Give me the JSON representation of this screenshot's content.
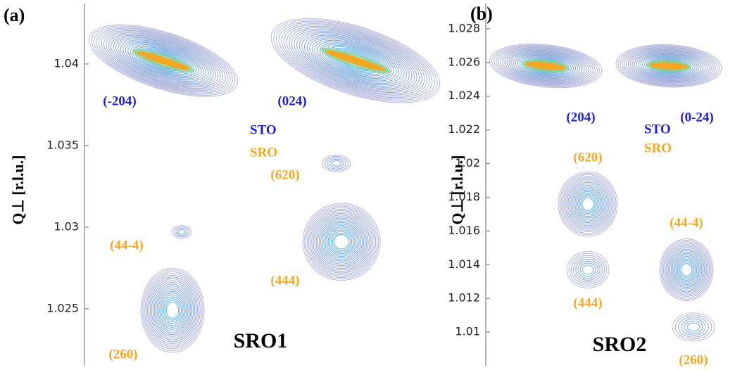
{
  "chart_data": [
    {
      "type": "contour",
      "panel_label": "(a)",
      "ylabel": "Q⊥ [r.l.u.]",
      "title": "SRO1",
      "ylim": [
        1.0215,
        1.0437
      ],
      "yticks": [
        1.025,
        1.03,
        1.035,
        1.04
      ],
      "legend": [
        {
          "name": "STO",
          "color": "#1f1fd0"
        },
        {
          "name": "SRO",
          "color": "#f5a623"
        }
      ],
      "peaks": [
        {
          "label": "(-204)",
          "color": "#1f1fd0",
          "y": 1.0402
        },
        {
          "label": "(024)",
          "color": "#1f1fd0",
          "y": 1.0402
        },
        {
          "label": "(620)",
          "color": "#f5a623",
          "y": 1.0339
        },
        {
          "label": "(44-4)",
          "color": "#f5a623",
          "y": 1.0297
        },
        {
          "label": "(444)",
          "color": "#f5a623",
          "y": 1.0291
        },
        {
          "label": "(260)",
          "color": "#f5a623",
          "y": 1.0249
        }
      ]
    },
    {
      "type": "contour",
      "panel_label": "(b)",
      "ylabel": "Q⊥ [r.l.u.]",
      "title": "SRO2",
      "ylim": [
        1.008,
        1.0295
      ],
      "yticks": [
        1.01,
        1.012,
        1.014,
        1.016,
        1.018,
        1.02,
        1.022,
        1.024,
        1.026,
        1.028
      ],
      "legend": [
        {
          "name": "STO",
          "color": "#1f1fd0"
        },
        {
          "name": "SRO",
          "color": "#f5a623"
        }
      ],
      "peaks": [
        {
          "label": "(204)",
          "color": "#1f1fd0",
          "y": 1.0258
        },
        {
          "label": "(0-24)",
          "color": "#1f1fd0",
          "y": 1.0258
        },
        {
          "label": "(620)",
          "color": "#f5a623",
          "y": 1.0176
        },
        {
          "label": "(444)",
          "color": "#f5a623",
          "y": 1.0137
        },
        {
          "label": "(44-4)",
          "color": "#f5a623",
          "y": 1.0137
        },
        {
          "label": "(260)",
          "color": "#f5a623",
          "y": 1.0103
        }
      ]
    }
  ]
}
